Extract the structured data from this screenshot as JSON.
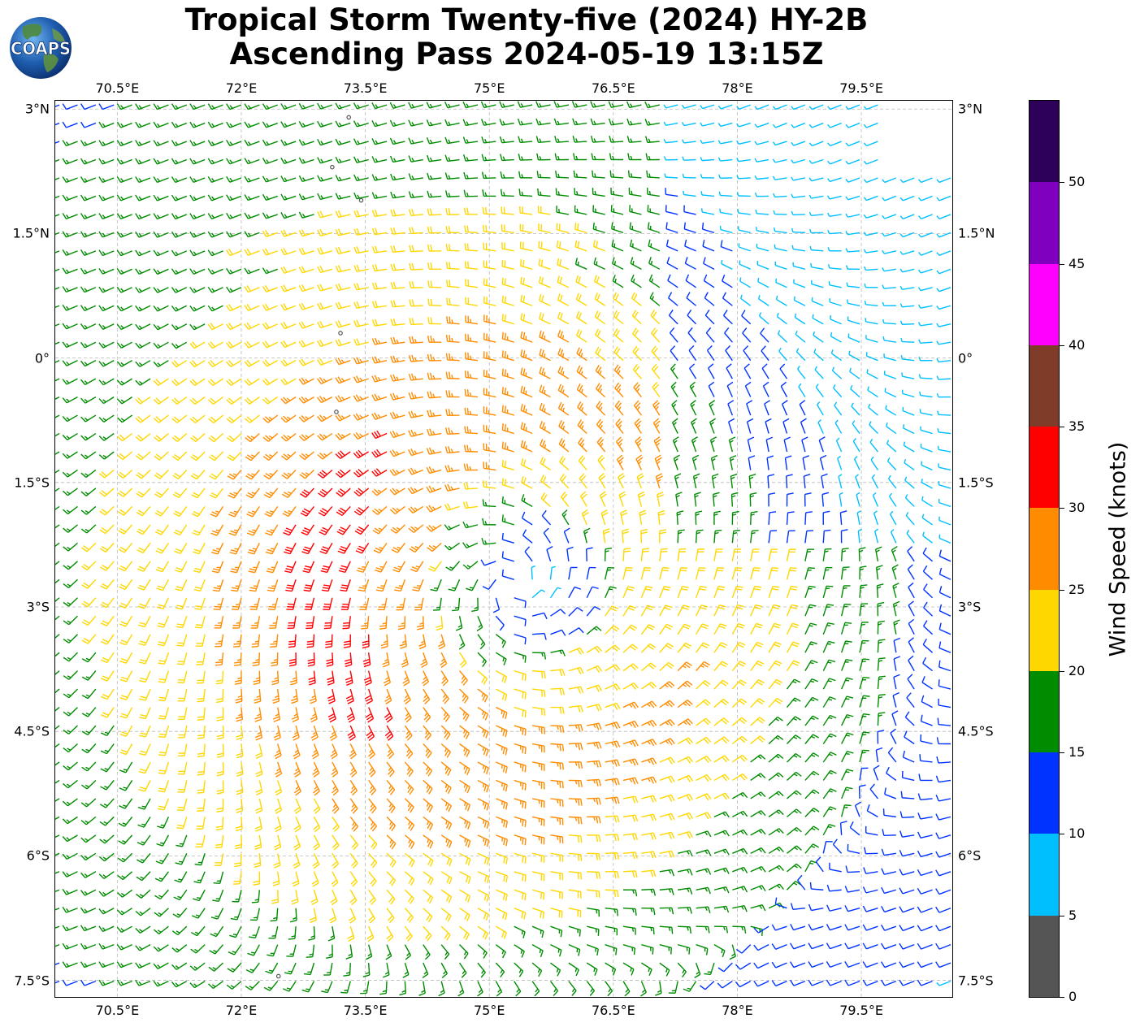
{
  "title": {
    "line1": "Tropical Storm Twenty-five (2024) HY-2B",
    "line2": "Ascending Pass 2024-05-19 13:15Z"
  },
  "logo": {
    "text": "COAPS",
    "icon": "globe-icon"
  },
  "map": {
    "lon_range": [
      69.75,
      80.6
    ],
    "lat_range": [
      -7.7,
      3.1
    ],
    "grid": true,
    "lon_ticks": [
      "70.5°E",
      "72°E",
      "73.5°E",
      "75°E",
      "76.5°E",
      "78°E",
      "79.5°E"
    ],
    "lat_ticks": [
      "3°N",
      "1.5°N",
      "0°",
      "1.5°S",
      "3°S",
      "4.5°S",
      "6°S",
      "7.5°S"
    ],
    "storm_center": {
      "lon": 75.3,
      "lat": -2.75
    },
    "land_color": "#555555"
  },
  "colorbar": {
    "title": "Wind Speed (knots)",
    "ticks": [
      "0",
      "5",
      "10",
      "15",
      "20",
      "25",
      "30",
      "35",
      "40",
      "45",
      "50"
    ],
    "bins": [
      {
        "min": 0,
        "max": 5,
        "color": "#555555"
      },
      {
        "min": 5,
        "max": 10,
        "color": "#00bfff"
      },
      {
        "min": 10,
        "max": 15,
        "color": "#0033ff"
      },
      {
        "min": 15,
        "max": 20,
        "color": "#008c00"
      },
      {
        "min": 20,
        "max": 25,
        "color": "#ffd700"
      },
      {
        "min": 25,
        "max": 30,
        "color": "#ff8c00"
      },
      {
        "min": 30,
        "max": 35,
        "color": "#ff0000"
      },
      {
        "min": 35,
        "max": 40,
        "color": "#7f3c28"
      },
      {
        "min": 40,
        "max": 45,
        "color": "#ff00ff"
      },
      {
        "min": 45,
        "max": 50,
        "color": "#8000c0"
      },
      {
        "min": 50,
        "max": 55,
        "color": "#2d005a"
      }
    ]
  }
}
